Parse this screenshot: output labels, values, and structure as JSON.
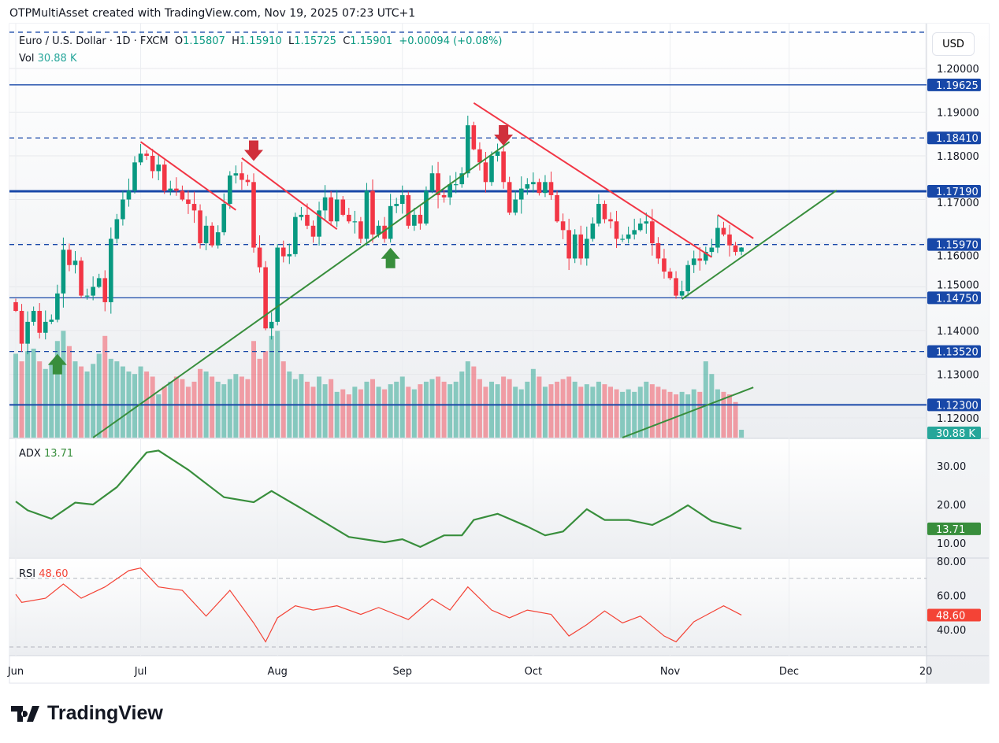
{
  "credit": "OTPMultiAsset created with TradingView.com, Nov 19, 2025 07:23 UTC+1",
  "legend": {
    "symbol": "Euro / U.S. Dollar · 1D · FXCM",
    "open_label": "O",
    "open": "1.15807",
    "high_label": "H",
    "high": "1.15910",
    "low_label": "L",
    "low": "1.15725",
    "close_label": "C",
    "close": "1.15901",
    "change": "+0.00094 (+0.08%)",
    "vol_label": "Vol",
    "vol": "30.88 K"
  },
  "currency": "USD",
  "logo_text": "TradingView",
  "colors": {
    "up": "#089981",
    "down": "#f23645",
    "level": "#1848a8",
    "trend_red": "#f23645",
    "trend_green": "#388e3c",
    "adx": "#388e3c",
    "rsi": "#f44336",
    "vol_badge": "#26a69a"
  },
  "chart_data": {
    "type": "candlestick",
    "start_date": "2025-06-02",
    "end_date": "2025-11-19",
    "price_axis": {
      "ticks": [
        "1.20000",
        "1.19000",
        "1.18000",
        "1.17000",
        "1.16000",
        "1.15000",
        "1.14000",
        "1.13000",
        "1.12000"
      ],
      "ylim": [
        1.1155,
        1.2083
      ]
    },
    "closes": [
      1.1445,
      1.137,
      1.142,
      1.1445,
      1.1395,
      1.142,
      1.1425,
      1.1485,
      1.1585,
      1.155,
      1.156,
      1.148,
      1.148,
      1.15,
      1.152,
      1.1465,
      1.161,
      1.1655,
      1.17,
      1.172,
      1.1785,
      1.1805,
      1.18,
      1.1765,
      1.178,
      1.172,
      1.1725,
      1.172,
      1.17,
      1.169,
      1.1675,
      1.16,
      1.164,
      1.1595,
      1.1625,
      1.169,
      1.1755,
      1.176,
      1.1745,
      1.174,
      1.159,
      1.1545,
      1.1405,
      1.142,
      1.159,
      1.157,
      1.1575,
      1.166,
      1.1665,
      1.164,
      1.1615,
      1.1675,
      1.1705,
      1.165,
      1.17,
      1.1665,
      1.165,
      1.165,
      1.161,
      1.172,
      1.162,
      1.164,
      1.161,
      1.1685,
      1.169,
      1.171,
      1.164,
      1.1665,
      1.1645,
      1.172,
      1.176,
      1.171,
      1.1705,
      1.1735,
      1.1735,
      1.176,
      1.187,
      1.1815,
      1.1785,
      1.174,
      1.18,
      1.181,
      1.174,
      1.167,
      1.17,
      1.1725,
      1.1735,
      1.174,
      1.1715,
      1.174,
      1.171,
      1.165,
      1.163,
      1.1565,
      1.162,
      1.1565,
      1.161,
      1.1645,
      1.169,
      1.1655,
      1.165,
      1.161,
      1.161,
      1.162,
      1.163,
      1.1645,
      1.165,
      1.16,
      1.1565,
      1.1535,
      1.152,
      1.148,
      1.149,
      1.155,
      1.1565,
      1.156,
      1.158,
      1.159,
      1.1635,
      1.162,
      1.1595,
      1.158,
      1.15901
    ],
    "volume_k": [
      330,
      300,
      340,
      350,
      300,
      270,
      290,
      380,
      420,
      360,
      300,
      280,
      260,
      290,
      330,
      400,
      310,
      300,
      280,
      260,
      250,
      280,
      260,
      240,
      170,
      200,
      220,
      240,
      230,
      200,
      220,
      270,
      260,
      240,
      220,
      210,
      230,
      250,
      240,
      230,
      380,
      310,
      340,
      400,
      420,
      300,
      260,
      230,
      250,
      220,
      200,
      240,
      210,
      230,
      180,
      190,
      170,
      200,
      190,
      220,
      230,
      200,
      190,
      210,
      220,
      240,
      200,
      190,
      210,
      220,
      230,
      240,
      220,
      210,
      220,
      260,
      300,
      280,
      230,
      200,
      220,
      210,
      240,
      230,
      200,
      190,
      220,
      270,
      240,
      200,
      210,
      220,
      230,
      240,
      220,
      200,
      210,
      200,
      220,
      210,
      200,
      190,
      180,
      190,
      180,
      200,
      220,
      210,
      200,
      190,
      180,
      170,
      180,
      170,
      190,
      180,
      300,
      250,
      190,
      180,
      170,
      140,
      30.88
    ],
    "levels": [
      {
        "price": 1.19625,
        "label": "1.19625",
        "style": "solid"
      },
      {
        "price": 1.1841,
        "label": "1.18410",
        "style": "dashed"
      },
      {
        "price": 1.1719,
        "label": "1.17190",
        "style": "thick"
      },
      {
        "price": 1.1597,
        "label": "1.15970",
        "style": "dashed"
      },
      {
        "price": 1.1475,
        "label": "1.14750",
        "style": "solid"
      },
      {
        "price": 1.1352,
        "label": "1.13520",
        "style": "dashed"
      },
      {
        "price": 1.123,
        "label": "1.12300",
        "style": "medium"
      },
      {
        "price": 1.2083,
        "label": "",
        "style": "dashed"
      }
    ],
    "trendlines": [
      {
        "color": "red",
        "from": [
          "2025-07-01",
          1.1832
        ],
        "to": [
          "2025-07-23",
          1.1676
        ]
      },
      {
        "color": "red",
        "from": [
          "2025-07-24",
          1.1795
        ],
        "to": [
          "2025-08-15",
          1.1632
        ]
      },
      {
        "color": "red",
        "from": [
          "2025-09-17",
          1.1921
        ],
        "to": [
          "2025-11-12",
          1.1568
        ]
      },
      {
        "color": "red",
        "from": [
          "2025-11-13",
          1.1665
        ],
        "to": [
          "2025-11-21",
          1.1611
        ]
      },
      {
        "color": "green",
        "from": [
          "2025-06-19",
          1.1155
        ],
        "to": [
          "2025-09-25",
          1.1832
        ]
      },
      {
        "color": "green",
        "from": [
          "2025-11-05",
          1.1472
        ],
        "to": [
          "2025-12-11",
          1.1721
        ]
      },
      {
        "color": "green",
        "from": [
          "2025-10-22",
          1.1155
        ],
        "to": [
          "2025-11-21",
          1.127
        ]
      }
    ],
    "arrows": [
      {
        "dir": "down",
        "date": "2025-07-28",
        "price": 1.181
      },
      {
        "dir": "down",
        "date": "2025-09-24",
        "price": 1.1845
      },
      {
        "dir": "up",
        "date": "2025-06-11",
        "price": 1.1325
      },
      {
        "dir": "up",
        "date": "2025-08-28",
        "price": 1.1568
      }
    ],
    "time_axis": [
      {
        "label": "Jun",
        "date": "2025-06-02"
      },
      {
        "label": "Jul",
        "date": "2025-07-01"
      },
      {
        "label": "Aug",
        "date": "2025-08-01"
      },
      {
        "label": "Sep",
        "date": "2025-09-01"
      },
      {
        "label": "Oct",
        "date": "2025-10-01"
      },
      {
        "label": "Nov",
        "date": "2025-11-03"
      },
      {
        "label": "Dec",
        "date": "2025-12-01"
      },
      {
        "label": "20",
        "date": "2026-01-01"
      }
    ],
    "volume_badge": "30.88 K",
    "adx": {
      "label": "ADX",
      "value": "13.71",
      "ticks": [
        "30.00",
        "20.00",
        "10.00"
      ],
      "points": [
        [
          "2025-06-02",
          20.8
        ],
        [
          "2025-06-04",
          18.5
        ],
        [
          "2025-06-10",
          16.3
        ],
        [
          "2025-06-16",
          20.5
        ],
        [
          "2025-06-19",
          20
        ],
        [
          "2025-06-25",
          24.5
        ],
        [
          "2025-07-02",
          33.5
        ],
        [
          "2025-07-04",
          34
        ],
        [
          "2025-07-11",
          29
        ],
        [
          "2025-07-21",
          21.9
        ],
        [
          "2025-07-28",
          20.6
        ],
        [
          "2025-07-31",
          23.5
        ],
        [
          "2025-08-07",
          19
        ],
        [
          "2025-08-19",
          11.6
        ],
        [
          "2025-08-27",
          10.2
        ],
        [
          "2025-09-01",
          11
        ],
        [
          "2025-09-04",
          9
        ],
        [
          "2025-09-10",
          12
        ],
        [
          "2025-09-15",
          12
        ],
        [
          "2025-09-17",
          16
        ],
        [
          "2025-09-23",
          17.6
        ],
        [
          "2025-09-30",
          14.3
        ],
        [
          "2025-10-03",
          12
        ],
        [
          "2025-10-08",
          13
        ],
        [
          "2025-10-14",
          18.8
        ],
        [
          "2025-10-17",
          16
        ],
        [
          "2025-10-23",
          16
        ],
        [
          "2025-10-29",
          14.7
        ],
        [
          "2025-11-03",
          17
        ],
        [
          "2025-11-06",
          19.8
        ],
        [
          "2025-11-12",
          15.7
        ],
        [
          "2025-11-19",
          13.71
        ]
      ]
    },
    "rsi": {
      "label": "RSI",
      "value": "48.60",
      "ticks": [
        "80.00",
        "60.00",
        "40.00"
      ],
      "bands": [
        70,
        30
      ],
      "points": [
        [
          "2025-06-02",
          60.7
        ],
        [
          "2025-06-03",
          56
        ],
        [
          "2025-06-09",
          58.4
        ],
        [
          "2025-06-12",
          66.7
        ],
        [
          "2025-06-17",
          58.4
        ],
        [
          "2025-06-23",
          65
        ],
        [
          "2025-06-27",
          74.5
        ],
        [
          "2025-07-01",
          76
        ],
        [
          "2025-07-04",
          65
        ],
        [
          "2025-07-10",
          63
        ],
        [
          "2025-07-16",
          48
        ],
        [
          "2025-07-22",
          63
        ],
        [
          "2025-07-28",
          44
        ],
        [
          "2025-07-30",
          33
        ],
        [
          "2025-08-01",
          47
        ],
        [
          "2025-08-06",
          54
        ],
        [
          "2025-08-11",
          51.5
        ],
        [
          "2025-08-15",
          54
        ],
        [
          "2025-08-21",
          49
        ],
        [
          "2025-08-26",
          53
        ],
        [
          "2025-09-02",
          46
        ],
        [
          "2025-09-08",
          58
        ],
        [
          "2025-09-11",
          51.5
        ],
        [
          "2025-09-16",
          65
        ],
        [
          "2025-09-22",
          51.5
        ],
        [
          "2025-09-25",
          47
        ],
        [
          "2025-09-30",
          51.5
        ],
        [
          "2025-10-06",
          49
        ],
        [
          "2025-10-09",
          36.4
        ],
        [
          "2025-10-14",
          43
        ],
        [
          "2025-10-17",
          51
        ],
        [
          "2025-10-22",
          44
        ],
        [
          "2025-10-27",
          48
        ],
        [
          "2025-10-31",
          36.4
        ],
        [
          "2025-11-04",
          33
        ],
        [
          "2025-11-07",
          44.7
        ],
        [
          "2025-11-14",
          54
        ],
        [
          "2025-11-19",
          48.6
        ]
      ]
    }
  }
}
